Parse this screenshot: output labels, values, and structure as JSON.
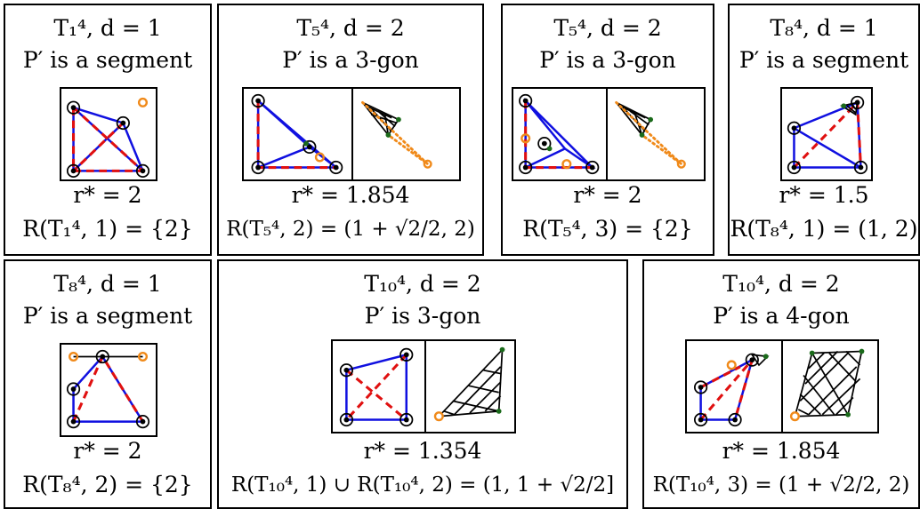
{
  "panels": [
    {
      "title": "T₁⁴, d = 1",
      "desc": "P′ is a segment",
      "rstar": "r* = 2",
      "range": "R(T₁⁴, 1) = {2}"
    },
    {
      "title": "T₅⁴, d = 2",
      "desc": "P′ is a 3-gon",
      "rstar": "r* = 1.854",
      "range": "R(T₅⁴, 2) = (1 + √2/2, 2)"
    },
    {
      "title": "T₅⁴, d = 2",
      "desc": "P′ is a 3-gon",
      "rstar": "r* = 2",
      "range": "R(T₅⁴, 3) = {2}"
    },
    {
      "title": "T₈⁴, d = 1",
      "desc": "P′ is a segment",
      "rstar": "r* = 1.5",
      "range": "R(T₈⁴, 1) = (1, 2)"
    },
    {
      "title": "T₈⁴, d = 1",
      "desc": "P′ is a segment",
      "rstar": "r* = 2",
      "range": "R(T₈⁴, 2) = {2}"
    },
    {
      "title": "T₁₀⁴, d = 2",
      "desc": "P′ is 3-gon",
      "rstar": "r* = 1.354",
      "range": "R(T₁₀⁴, 1) ∪ R(T₁₀⁴, 2) = (1, 1 + √2/2]"
    },
    {
      "title": "T₁₀⁴, d = 2",
      "desc": "P′ is a 4-gon",
      "rstar": "r* = 1.854",
      "range": "R(T₁₀⁴, 3) = (1 + √2/2, 2)"
    }
  ]
}
